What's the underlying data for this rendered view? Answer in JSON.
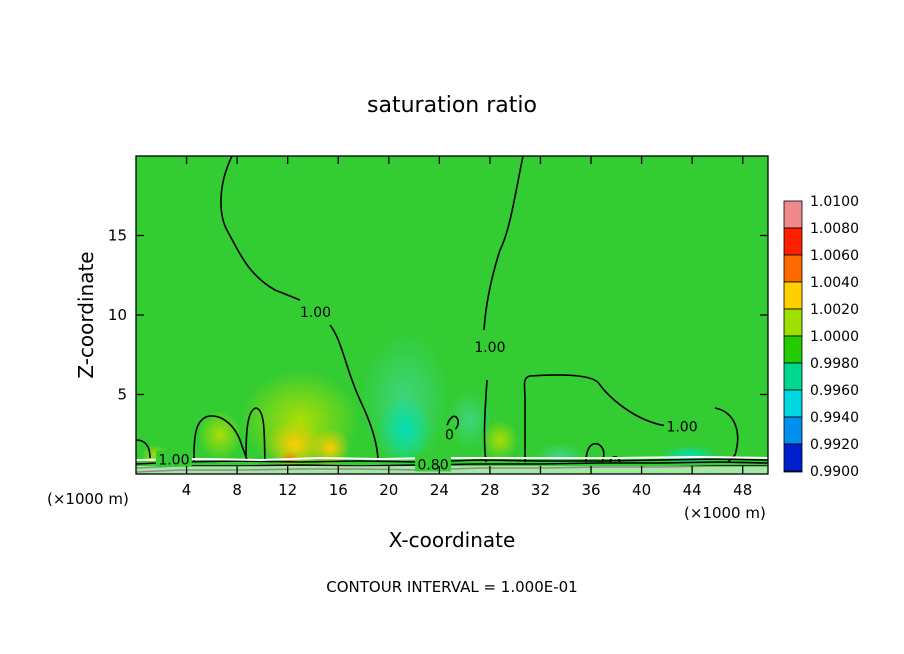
{
  "chart_data": {
    "type": "contour",
    "title": "saturation ratio",
    "xlabel": "X-coordinate",
    "ylabel": "Z-coordinate",
    "x_unit_left": "(×1000 m)",
    "x_unit_right": "(×1000 m)",
    "xlim": [
      0,
      50
    ],
    "ylim": [
      0,
      20
    ],
    "xticks": [
      4,
      8,
      12,
      16,
      20,
      24,
      28,
      32,
      36,
      40,
      44,
      48
    ],
    "xtick_labels": [
      "4",
      "8",
      "12",
      "16",
      "20",
      "24",
      "28",
      "32",
      "36",
      "40",
      "44",
      "48"
    ],
    "yticks": [
      5,
      10,
      15
    ],
    "ytick_labels": [
      "5",
      "10",
      "15"
    ],
    "contour_labels": [
      {
        "text": "1.00",
        "x": 14.2,
        "y": 10.2
      },
      {
        "text": "1.00",
        "x": 28.0,
        "y": 8.0
      },
      {
        "text": "1.00",
        "x": 43.2,
        "y": 3.0
      },
      {
        "text": "1.00",
        "x": 3.0,
        "y": 0.9
      },
      {
        "text": "0.80",
        "x": 23.5,
        "y": 0.6
      },
      {
        "text": "0",
        "x": 24.8,
        "y": 2.5
      }
    ],
    "colorbar": {
      "levels": [
        1.01,
        1.008,
        1.006,
        1.004,
        1.002,
        1.0,
        0.998,
        0.996,
        0.994,
        0.992,
        0.99
      ],
      "labels": [
        "1.0100",
        "1.0080",
        "1.0060",
        "1.0040",
        "1.0020",
        "1.0000",
        "0.9980",
        "0.9960",
        "0.9940",
        "0.9920",
        "0.9900"
      ],
      "colors": [
        "#f08a8a",
        "#ff2000",
        "#ff6a00",
        "#ffd000",
        "#9ee000",
        "#22cc00",
        "#00d890",
        "#00d8e0",
        "#0090f0",
        "#0020d0",
        "#5a00a0"
      ]
    },
    "background_color": "#33cc33",
    "footer": "CONTOUR INTERVAL = 1.000E-01"
  }
}
